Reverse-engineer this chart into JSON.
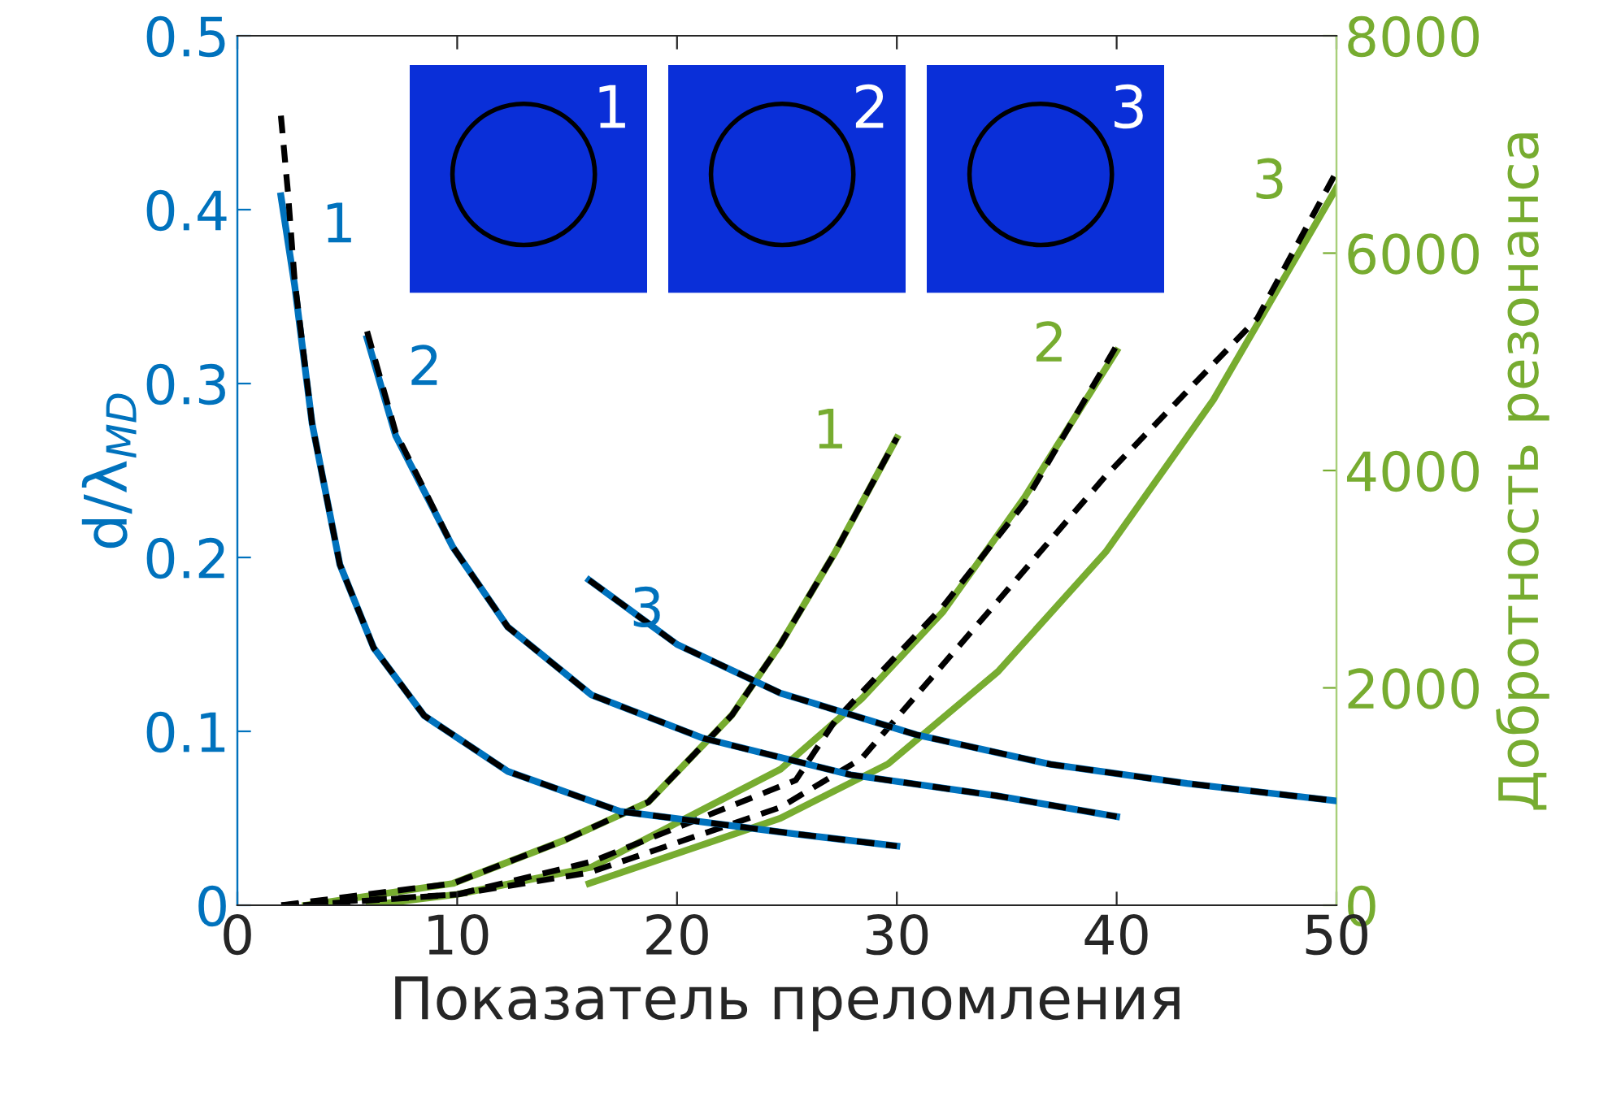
{
  "chart_data": {
    "type": "line",
    "xlabel": "Показатель преломления",
    "ylabel": "d/λ$_{MD}$",
    "y2label": "Добротность резонанса",
    "xlim": [
      0,
      50
    ],
    "xticks": [
      0,
      10,
      20,
      30,
      40,
      50
    ],
    "ylim": [
      0,
      0.5
    ],
    "yticks": [
      0,
      0.1,
      0.2,
      0.3,
      0.4,
      0.5
    ],
    "y2lim": [
      0,
      8000
    ],
    "y2ticks": [
      0,
      2000,
      4000,
      6000,
      8000
    ],
    "grid": false,
    "legend": false,
    "marker": "none",
    "series": [
      {
        "name": "1",
        "color": "#0072bd",
        "line_style": "solid",
        "x": [
          1.98,
          2.6,
          3.4,
          4.66,
          6.2,
          8.5,
          12.3,
          17.4,
          25.4,
          30
        ],
        "values": [
          0.408,
          0.357,
          0.277,
          0.196,
          0.148,
          0.109,
          0.077,
          0.054,
          0.041,
          0.034
        ]
      },
      {
        "name": "2",
        "color": "#0072bd",
        "line_style": "solid",
        "x": [
          5.9,
          7.2,
          9.8,
          12.3,
          16.1,
          21.2,
          27.9,
          34.5,
          40
        ],
        "values": [
          0.326,
          0.27,
          0.206,
          0.16,
          0.121,
          0.096,
          0.075,
          0.063,
          0.051
        ]
      },
      {
        "name": "3",
        "color": "#0072bd",
        "line_style": "solid",
        "x": [
          16,
          20,
          24.7,
          30.9,
          37,
          43.2,
          50
        ],
        "values": [
          0.187,
          0.15,
          0.122,
          0.098,
          0.081,
          0.07,
          0.06
        ]
      },
      {
        "name": "1",
        "color": "#77ac30",
        "line_style": "solid",
        "axis": "y2",
        "x": [
          3.1,
          9.8,
          14.9,
          18.7,
          22.5,
          24.7,
          27.2,
          30
        ],
        "values": [
          0,
          200,
          600,
          950,
          1750,
          2400,
          3250,
          4300
        ]
      },
      {
        "name": "2",
        "color": "#77ac30",
        "line_style": "solid",
        "axis": "y2",
        "x": [
          6,
          10,
          16.1,
          24.7,
          28.4,
          32.1,
          35.8,
          40
        ],
        "values": [
          0,
          100,
          350,
          1250,
          1900,
          2700,
          3750,
          5100
        ]
      },
      {
        "name": "3",
        "color": "#77ac30",
        "line_style": "solid",
        "axis": "y2",
        "x": [
          16,
          24.7,
          29.6,
          34.6,
          39.5,
          44.4,
          50
        ],
        "values": [
          200,
          800,
          1300,
          2150,
          3250,
          4650,
          6600
        ]
      },
      {
        "color": "#000000",
        "line_style": "dashed",
        "x": [
          1.98,
          2.3,
          2.6,
          3.4,
          4.66,
          6.2,
          8.5,
          12.3,
          17.4,
          25.4,
          30
        ],
        "values": [
          0.454,
          0.41,
          0.36,
          0.277,
          0.196,
          0.148,
          0.109,
          0.077,
          0.054,
          0.041,
          0.034
        ]
      },
      {
        "color": "#000000",
        "line_style": "dashed",
        "x": [
          5.9,
          7.2,
          9.8,
          12.3,
          16.1,
          21.2,
          27.9,
          34.5,
          40
        ],
        "values": [
          0.33,
          0.272,
          0.206,
          0.16,
          0.121,
          0.096,
          0.075,
          0.063,
          0.051
        ]
      },
      {
        "color": "#000000",
        "line_style": "dashed",
        "x": [
          16,
          20,
          24.7,
          30.9,
          37,
          43.2,
          50
        ],
        "values": [
          0.187,
          0.15,
          0.122,
          0.098,
          0.081,
          0.07,
          0.06
        ]
      },
      {
        "color": "#000000",
        "line_style": "dashed",
        "axis": "y2",
        "x": [
          2,
          9.8,
          14.9,
          18.7,
          22.5,
          24.7,
          27.2,
          30
        ],
        "values": [
          0,
          200,
          600,
          950,
          1750,
          2400,
          3250,
          4300
        ]
      },
      {
        "color": "#000000",
        "line_style": "dashed",
        "axis": "y2",
        "x": [
          2,
          10,
          16.1,
          25.4,
          27.2,
          32.1,
          35.8,
          40
        ],
        "values": [
          0,
          100,
          400,
          1150,
          1700,
          2750,
          3700,
          5150
        ]
      },
      {
        "color": "#000000",
        "line_style": "dashed",
        "axis": "y2",
        "x": [
          3,
          10,
          16,
          24.7,
          28.4,
          34.6,
          39.5,
          46.4,
          50
        ],
        "values": [
          0,
          100,
          300,
          900,
          1350,
          2800,
          3950,
          5400,
          6750
        ]
      }
    ],
    "annotations": [
      "1",
      "2",
      "3"
    ]
  }
}
